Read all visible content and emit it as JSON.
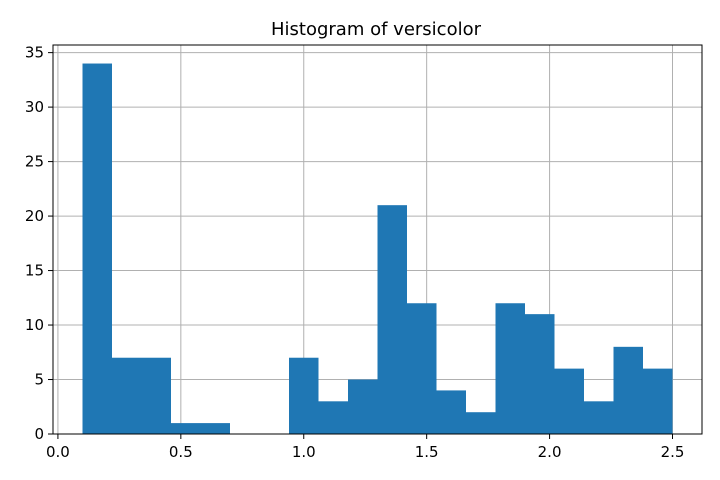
{
  "chart_data": {
    "type": "bar",
    "title": "Histogram of versicolor",
    "xlabel": "",
    "ylabel": "",
    "xlim": [
      -0.02,
      2.62
    ],
    "ylim": [
      0,
      35.7
    ],
    "grid": true,
    "bar_color": "#1f77b4",
    "bins": [
      {
        "x0": 0.1,
        "x1": 0.22,
        "count": 34
      },
      {
        "x0": 0.22,
        "x1": 0.34,
        "count": 7
      },
      {
        "x0": 0.34,
        "x1": 0.46,
        "count": 7
      },
      {
        "x0": 0.46,
        "x1": 0.58,
        "count": 1
      },
      {
        "x0": 0.58,
        "x1": 0.7,
        "count": 1
      },
      {
        "x0": 0.7,
        "x1": 0.82,
        "count": 0
      },
      {
        "x0": 0.82,
        "x1": 0.94,
        "count": 0
      },
      {
        "x0": 0.94,
        "x1": 1.06,
        "count": 7
      },
      {
        "x0": 1.06,
        "x1": 1.18,
        "count": 3
      },
      {
        "x0": 1.18,
        "x1": 1.3,
        "count": 5
      },
      {
        "x0": 1.3,
        "x1": 1.42,
        "count": 21
      },
      {
        "x0": 1.42,
        "x1": 1.54,
        "count": 12
      },
      {
        "x0": 1.54,
        "x1": 1.66,
        "count": 4
      },
      {
        "x0": 1.66,
        "x1": 1.78,
        "count": 2
      },
      {
        "x0": 1.78,
        "x1": 1.9,
        "count": 12
      },
      {
        "x0": 1.9,
        "x1": 2.02,
        "count": 11
      },
      {
        "x0": 2.02,
        "x1": 2.14,
        "count": 6
      },
      {
        "x0": 2.14,
        "x1": 2.26,
        "count": 3
      },
      {
        "x0": 2.26,
        "x1": 2.38,
        "count": 8
      },
      {
        "x0": 2.38,
        "x1": 2.5,
        "count": 6
      }
    ],
    "x_ticks": [
      {
        "value": 0.0,
        "label": "0.0"
      },
      {
        "value": 0.5,
        "label": "0.5"
      },
      {
        "value": 1.0,
        "label": "1.0"
      },
      {
        "value": 1.5,
        "label": "1.5"
      },
      {
        "value": 2.0,
        "label": "2.0"
      },
      {
        "value": 2.5,
        "label": "2.5"
      }
    ],
    "y_ticks": [
      {
        "value": 0,
        "label": "0"
      },
      {
        "value": 5,
        "label": "5"
      },
      {
        "value": 10,
        "label": "10"
      },
      {
        "value": 15,
        "label": "15"
      },
      {
        "value": 20,
        "label": "20"
      },
      {
        "value": 25,
        "label": "25"
      },
      {
        "value": 30,
        "label": "30"
      },
      {
        "value": 35,
        "label": "35"
      }
    ]
  }
}
